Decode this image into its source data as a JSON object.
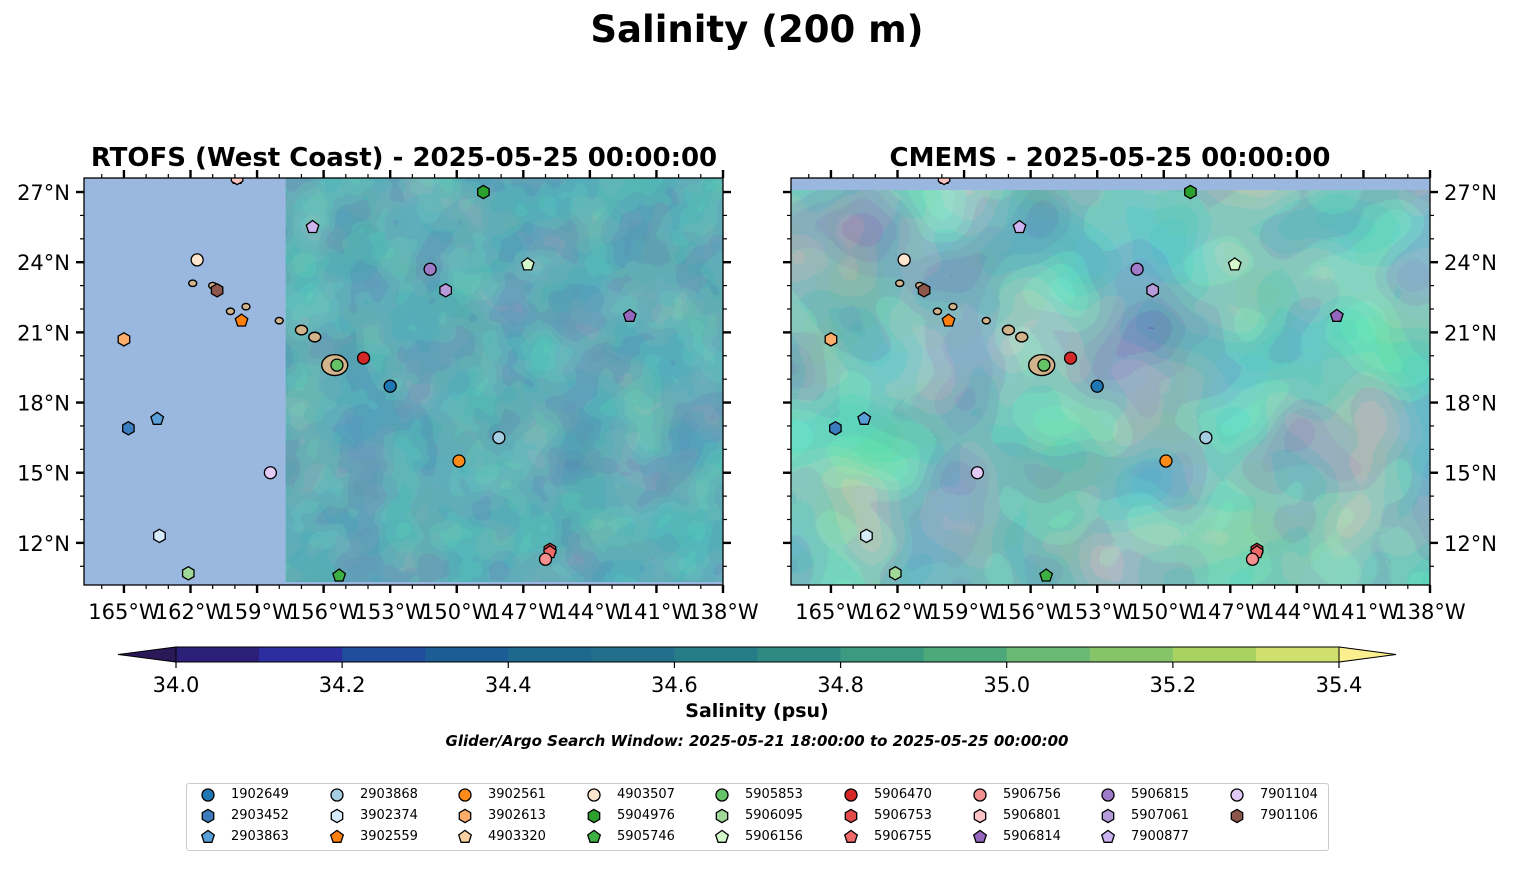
{
  "figure": {
    "title": "Salinity (200 m)",
    "search_window": "Glider/Argo Search Window: 2025-05-21 18:00:00 to 2025-05-25 00:00:00"
  },
  "panels": [
    {
      "title": "RTOFS (West Coast) - 2025-05-25 00:00:00",
      "dataset": "RTOFS"
    },
    {
      "title": "CMEMS - 2025-05-25 00:00:00",
      "dataset": "CMEMS"
    }
  ],
  "map": {
    "lon_range": [
      -166.8,
      -138.0
    ],
    "lat_range": [
      10.2,
      27.6
    ],
    "lon_ticks": [
      -165,
      -162,
      -159,
      -156,
      -153,
      -150,
      -147,
      -144,
      -141,
      -138
    ],
    "lon_tick_labels": [
      "165°W",
      "162°W",
      "159°W",
      "156°W",
      "153°W",
      "150°W",
      "147°W",
      "144°W",
      "141°W",
      "138°W"
    ],
    "lat_ticks": [
      27,
      24,
      21,
      18,
      15,
      12
    ],
    "lat_tick_labels": [
      "27°N",
      "24°N",
      "21°N",
      "18°N",
      "15°N",
      "12°N"
    ],
    "rtofs_domain_west_edge_lon": -157.7,
    "land_color": "#d2b48c",
    "no_data_color": "#9ab7e0",
    "islands": [
      {
        "lon": -155.5,
        "lat": 19.6
      },
      {
        "lon": -156.4,
        "lat": 20.8
      },
      {
        "lon": -157.0,
        "lat": 21.1
      },
      {
        "lon": -158.0,
        "lat": 21.5
      },
      {
        "lon": -159.5,
        "lat": 22.1
      },
      {
        "lon": -160.2,
        "lat": 21.9
      },
      {
        "lon": -161.0,
        "lat": 23.0
      },
      {
        "lon": -161.9,
        "lat": 23.1
      }
    ]
  },
  "colorbar": {
    "label": "Salinity (psu)",
    "min": 34.0,
    "max": 35.4,
    "step": 0.1,
    "ticks": [
      "34.0",
      "34.2",
      "34.4",
      "34.6",
      "34.8",
      "35.0",
      "35.2",
      "35.4"
    ],
    "under_color": "#2a1858",
    "over_color": "#fbef8f",
    "colors": [
      "#2b1f78",
      "#2c2ea0",
      "#1f4d9b",
      "#1c5d95",
      "#1d698d",
      "#216f8a",
      "#267d87",
      "#2e8b84",
      "#3b9b80",
      "#4ea97a",
      "#69b874",
      "#86c46a",
      "#a8d360",
      "#cfe06c"
    ]
  },
  "legend": {
    "columns": [
      [
        {
          "id": "1902649",
          "color": "#1f77b4",
          "marker": "circle"
        },
        {
          "id": "2903452",
          "color": "#3a7ebf",
          "marker": "hexagon"
        },
        {
          "id": "2903863",
          "color": "#5aa0d8",
          "marker": "pentagon"
        }
      ],
      [
        {
          "id": "2903868",
          "color": "#a6cee3",
          "marker": "circle"
        },
        {
          "id": "3902374",
          "color": "#d6ecfa",
          "marker": "hexagon"
        },
        {
          "id": "3902559",
          "color": "#ff7f0e",
          "marker": "pentagon"
        }
      ],
      [
        {
          "id": "3902561",
          "color": "#ff8c1a",
          "marker": "circle"
        },
        {
          "id": "3902613",
          "color": "#fdae6b",
          "marker": "hexagon"
        },
        {
          "id": "4903320",
          "color": "#fdd0a2",
          "marker": "pentagon"
        }
      ],
      [
        {
          "id": "4903507",
          "color": "#fee6ce",
          "marker": "circle"
        },
        {
          "id": "5904976",
          "color": "#2ca02c",
          "marker": "hexagon"
        },
        {
          "id": "5905746",
          "color": "#3cb043",
          "marker": "pentagon"
        }
      ],
      [
        {
          "id": "5905853",
          "color": "#66c266",
          "marker": "circle"
        },
        {
          "id": "5906095",
          "color": "#a1d99b",
          "marker": "hexagon"
        },
        {
          "id": "5906156",
          "color": "#d4f7cc",
          "marker": "pentagon"
        }
      ],
      [
        {
          "id": "5906470",
          "color": "#d62728",
          "marker": "circle"
        },
        {
          "id": "5906753",
          "color": "#e34a4a",
          "marker": "hexagon"
        },
        {
          "id": "5906755",
          "color": "#f06a6a",
          "marker": "pentagon"
        }
      ],
      [
        {
          "id": "5906756",
          "color": "#f4908f",
          "marker": "circle"
        },
        {
          "id": "5906801",
          "color": "#fbc4c4",
          "marker": "hexagon"
        },
        {
          "id": "5906814",
          "color": "#9467bd",
          "marker": "pentagon"
        }
      ],
      [
        {
          "id": "5906815",
          "color": "#a07cc8",
          "marker": "circle"
        },
        {
          "id": "5907061",
          "color": "#b79ad9",
          "marker": "hexagon"
        },
        {
          "id": "7900877",
          "color": "#cdb4f0",
          "marker": "pentagon"
        }
      ],
      [
        {
          "id": "7901104",
          "color": "#e3c9f5",
          "marker": "circle"
        },
        {
          "id": "7901106",
          "color": "#8c564b",
          "marker": "hexagon"
        }
      ]
    ]
  },
  "floats": [
    {
      "id": "1902649",
      "lon": -153.0,
      "lat": 18.7
    },
    {
      "id": "2903452",
      "lon": -164.8,
      "lat": 16.9
    },
    {
      "id": "2903863",
      "lon": -163.5,
      "lat": 17.3
    },
    {
      "id": "2903868",
      "lon": -148.1,
      "lat": 16.5
    },
    {
      "id": "3902374",
      "lon": -163.4,
      "lat": 12.3
    },
    {
      "id": "3902559",
      "lon": -159.7,
      "lat": 21.5
    },
    {
      "id": "3902561",
      "lon": -149.9,
      "lat": 15.5
    },
    {
      "id": "3902613",
      "lon": -165.0,
      "lat": 20.7
    },
    {
      "id": "4903320",
      "lon": -159.9,
      "lat": 27.6
    },
    {
      "id": "4903507",
      "lon": -161.7,
      "lat": 24.1
    },
    {
      "id": "5904976",
      "lon": -148.8,
      "lat": 27.0
    },
    {
      "id": "5905746",
      "lon": -155.3,
      "lat": 10.6
    },
    {
      "id": "5905853",
      "lon": -155.4,
      "lat": 19.6
    },
    {
      "id": "5906095",
      "lon": -162.1,
      "lat": 10.7
    },
    {
      "id": "5906156",
      "lon": -146.8,
      "lat": 23.9
    },
    {
      "id": "5906470",
      "lon": -154.2,
      "lat": 19.9
    },
    {
      "id": "5906753",
      "lon": -145.8,
      "lat": 11.7
    },
    {
      "id": "5906755",
      "lon": -145.8,
      "lat": 11.6
    },
    {
      "id": "5906756",
      "lon": -146.0,
      "lat": 11.3
    },
    {
      "id": "5906801",
      "lon": -159.9,
      "lat": 27.6
    },
    {
      "id": "5906814",
      "lon": -142.2,
      "lat": 21.7
    },
    {
      "id": "5906815",
      "lon": -151.2,
      "lat": 23.7
    },
    {
      "id": "5907061",
      "lon": -150.5,
      "lat": 22.8
    },
    {
      "id": "7900877",
      "lon": -156.5,
      "lat": 25.5
    },
    {
      "id": "7901104",
      "lon": -158.4,
      "lat": 15.0
    },
    {
      "id": "7901106",
      "lon": -160.8,
      "lat": 22.8
    }
  ]
}
